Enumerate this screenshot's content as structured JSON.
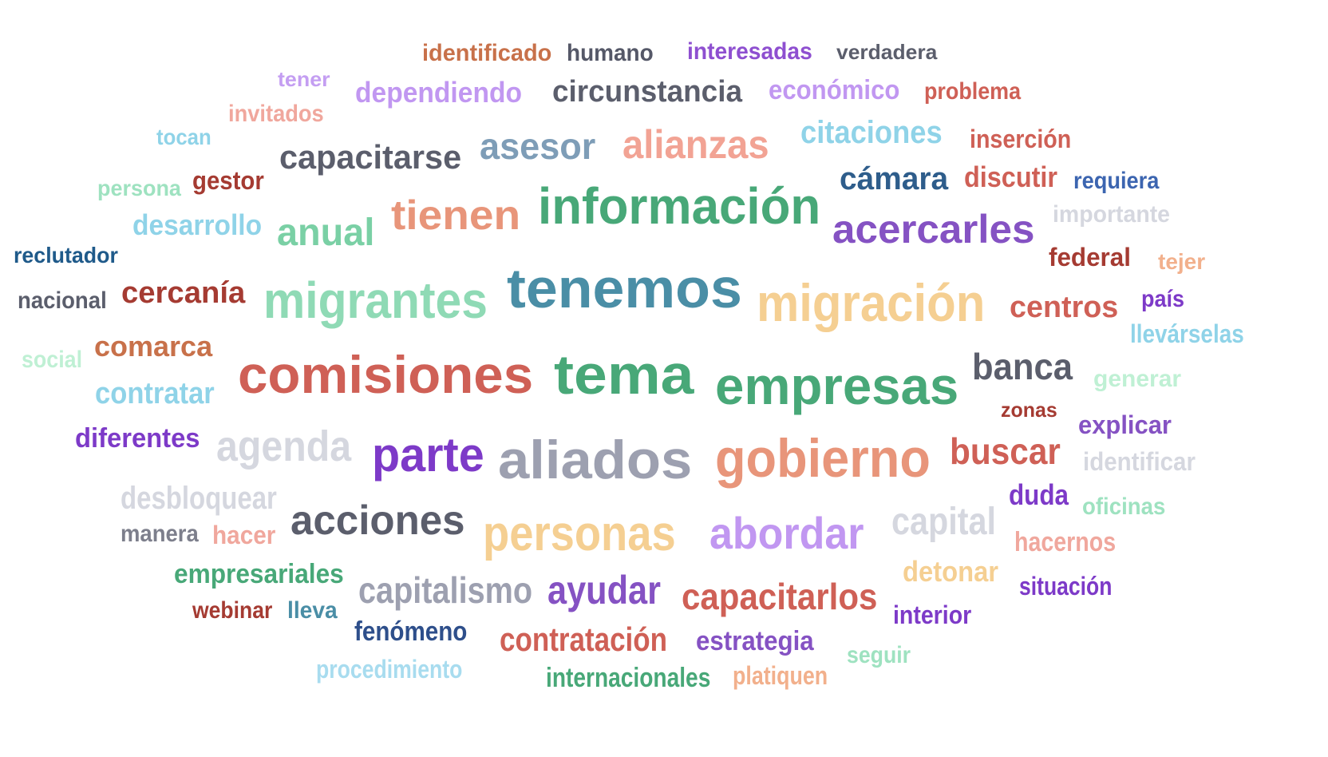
{
  "words": [
    {
      "id": "identificado",
      "text": "identificado",
      "color": "#c8714a"
    },
    {
      "id": "humano",
      "text": "humano",
      "color": "#555868"
    },
    {
      "id": "interesadas",
      "text": "interesadas",
      "color": "#8e4fd0"
    },
    {
      "id": "verdadera",
      "text": "verdadera",
      "color": "#5b5e6c"
    },
    {
      "id": "tener",
      "text": "tener",
      "color": "#c49ef2"
    },
    {
      "id": "dependiendo",
      "text": "dependiendo",
      "color": "#c197f1"
    },
    {
      "id": "circunstancia",
      "text": "circunstancia",
      "color": "#5b5e6c"
    },
    {
      "id": "economico",
      "text": "económico",
      "color": "#c197f1"
    },
    {
      "id": "problema",
      "text": "problema",
      "color": "#cf6056"
    },
    {
      "id": "invitados",
      "text": "invitados",
      "color": "#f0a79d"
    },
    {
      "id": "tocan",
      "text": "tocan",
      "color": "#8fd3e8"
    },
    {
      "id": "capacitarse",
      "text": "capacitarse",
      "color": "#5b5e6c"
    },
    {
      "id": "asesor",
      "text": "asesor",
      "color": "#7e9db7"
    },
    {
      "id": "alianzas",
      "text": "alianzas",
      "color": "#f2a394"
    },
    {
      "id": "citaciones",
      "text": "citaciones",
      "color": "#8fd3e8"
    },
    {
      "id": "insercion",
      "text": "inserción",
      "color": "#cf6056"
    },
    {
      "id": "persona",
      "text": "persona",
      "color": "#9ee2c0"
    },
    {
      "id": "gestor",
      "text": "gestor",
      "color": "#a53b32"
    },
    {
      "id": "camara",
      "text": "cámara",
      "color": "#2e5d8b"
    },
    {
      "id": "discutir",
      "text": "discutir",
      "color": "#cf6056"
    },
    {
      "id": "requiera",
      "text": "requiera",
      "color": "#3c65b0"
    },
    {
      "id": "tienen",
      "text": "tienen",
      "color": "#e8957a"
    },
    {
      "id": "informacion",
      "text": "información",
      "color": "#48a878"
    },
    {
      "id": "desarrollo",
      "text": "desarrollo",
      "color": "#8fd3e8"
    },
    {
      "id": "anual",
      "text": "anual",
      "color": "#7ad0a5"
    },
    {
      "id": "acercarles",
      "text": "acercarles",
      "color": "#8552c3"
    },
    {
      "id": "importante",
      "text": "importante",
      "color": "#d5d7df"
    },
    {
      "id": "reclutador",
      "text": "reclutador",
      "color": "#1f5a8a"
    },
    {
      "id": "federal",
      "text": "federal",
      "color": "#a53b32"
    },
    {
      "id": "tejer",
      "text": "tejer",
      "color": "#f2b08c"
    },
    {
      "id": "nacional",
      "text": "nacional",
      "color": "#5b5e6c"
    },
    {
      "id": "cercania",
      "text": "cercanía",
      "color": "#a53b32"
    },
    {
      "id": "migrantes",
      "text": "migrantes",
      "color": "#8fdab5"
    },
    {
      "id": "tenemos",
      "text": "tenemos",
      "color": "#4a8ea6"
    },
    {
      "id": "migracion",
      "text": "migración",
      "color": "#f5cf92"
    },
    {
      "id": "centros",
      "text": "centros",
      "color": "#cf6056"
    },
    {
      "id": "pais",
      "text": "país",
      "color": "#7d3ac8"
    },
    {
      "id": "llevarselas",
      "text": "llevárselas",
      "color": "#8fd3e8"
    },
    {
      "id": "social",
      "text": "social",
      "color": "#bff0d4"
    },
    {
      "id": "comarca",
      "text": "comarca",
      "color": "#c8714a"
    },
    {
      "id": "comisiones",
      "text": "comisiones",
      "color": "#cf6056"
    },
    {
      "id": "tema",
      "text": "tema",
      "color": "#48a878"
    },
    {
      "id": "empresas",
      "text": "empresas",
      "color": "#48a878"
    },
    {
      "id": "banca",
      "text": "banca",
      "color": "#5b5e6c"
    },
    {
      "id": "generar",
      "text": "generar",
      "color": "#bff0d4"
    },
    {
      "id": "contratar",
      "text": "contratar",
      "color": "#8fd3e8"
    },
    {
      "id": "zonas",
      "text": "zonas",
      "color": "#a53b32"
    },
    {
      "id": "explicar",
      "text": "explicar",
      "color": "#8552c3"
    },
    {
      "id": "diferentes",
      "text": "diferentes",
      "color": "#7d3ac8"
    },
    {
      "id": "agenda",
      "text": "agenda",
      "color": "#d5d7df"
    },
    {
      "id": "parte",
      "text": "parte",
      "color": "#7d3ac8"
    },
    {
      "id": "aliados",
      "text": "aliados",
      "color": "#9da0b0"
    },
    {
      "id": "gobierno",
      "text": "gobierno",
      "color": "#e8957a"
    },
    {
      "id": "buscar",
      "text": "buscar",
      "color": "#cf6056"
    },
    {
      "id": "identificar",
      "text": "identificar",
      "color": "#d5d7df"
    },
    {
      "id": "desbloquear",
      "text": "desbloquear",
      "color": "#d5d7df"
    },
    {
      "id": "duda",
      "text": "duda",
      "color": "#7d3ac8"
    },
    {
      "id": "oficinas",
      "text": "oficinas",
      "color": "#9ee2c0"
    },
    {
      "id": "acciones",
      "text": "acciones",
      "color": "#5b5e6c"
    },
    {
      "id": "capital",
      "text": "capital",
      "color": "#d5d7df"
    },
    {
      "id": "manera",
      "text": "manera",
      "color": "#7d7f8c"
    },
    {
      "id": "hacer",
      "text": "hacer",
      "color": "#f0a79d"
    },
    {
      "id": "personas",
      "text": "personas",
      "color": "#f5cf92"
    },
    {
      "id": "abordar",
      "text": "abordar",
      "color": "#c197f1"
    },
    {
      "id": "hacernos",
      "text": "hacernos",
      "color": "#f0a79d"
    },
    {
      "id": "empresariales",
      "text": "empresariales",
      "color": "#48a878"
    },
    {
      "id": "detonar",
      "text": "detonar",
      "color": "#f5cf92"
    },
    {
      "id": "capitalismo",
      "text": "capitalismo",
      "color": "#9da0b0"
    },
    {
      "id": "ayudar",
      "text": "ayudar",
      "color": "#8552c3"
    },
    {
      "id": "capacitarlos",
      "text": "capacitarlos",
      "color": "#cf6056"
    },
    {
      "id": "situacion",
      "text": "situación",
      "color": "#7d3ac8"
    },
    {
      "id": "webinar",
      "text": "webinar",
      "color": "#a53b32"
    },
    {
      "id": "lleva",
      "text": "lleva",
      "color": "#4a8ea6"
    },
    {
      "id": "interior",
      "text": "interior",
      "color": "#7d3ac8"
    },
    {
      "id": "fenomeno",
      "text": "fenómeno",
      "color": "#2e4f8b"
    },
    {
      "id": "contratacion",
      "text": "contratación",
      "color": "#cf6056"
    },
    {
      "id": "estrategia",
      "text": "estrategia",
      "color": "#8552c3"
    },
    {
      "id": "seguir",
      "text": "seguir",
      "color": "#9ee2c0"
    },
    {
      "id": "procedimiento",
      "text": "procedimiento",
      "color": "#a8dcef"
    },
    {
      "id": "internacionales",
      "text": "internacionales",
      "color": "#48a878"
    },
    {
      "id": "platiquen",
      "text": "platiquen",
      "color": "#f2b08c"
    }
  ]
}
